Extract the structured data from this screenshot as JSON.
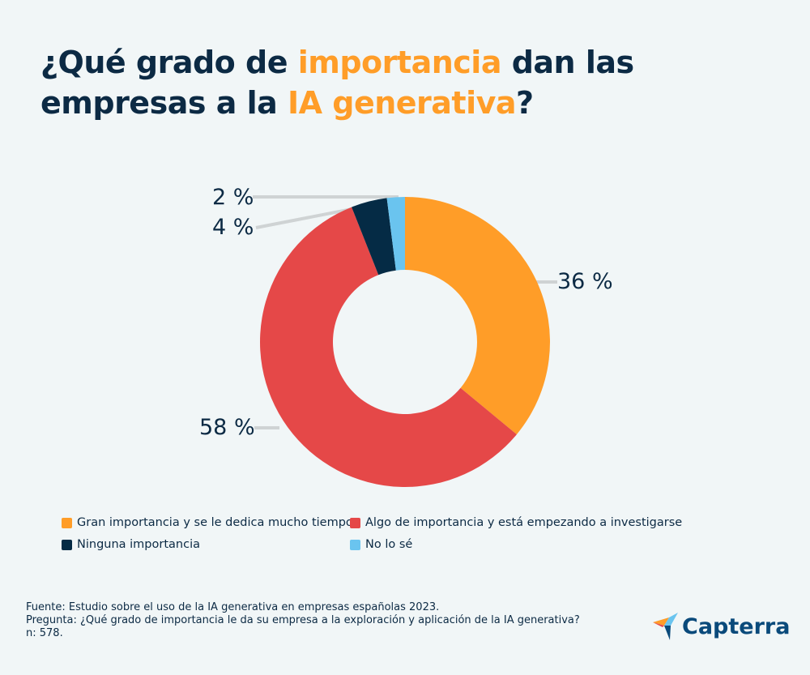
{
  "title": {
    "part1": "¿Qué grado de ",
    "highlight1": "importancia",
    "part2": " dan las",
    "part3": "empresas a la ",
    "highlight2": "IA generativa",
    "part4": "?"
  },
  "chart_data": {
    "type": "pie",
    "donut": true,
    "categories": [
      "Gran importancia y se le dedica mucho tiempo",
      "Algo de importancia y está empezando a investigarse",
      "Ninguna importancia",
      "No lo sé"
    ],
    "values": [
      36,
      58,
      4,
      2
    ],
    "labels": [
      "36 %",
      "58 %",
      "4 %",
      "2 %"
    ],
    "colors": [
      "#ff9d28",
      "#e54848",
      "#052b45",
      "#6ac4ef"
    ],
    "legend_position": "bottom"
  },
  "footer": {
    "source": "Fuente: Estudio sobre el uso de la IA generativa en empresas españolas 2023.",
    "question": "Pregunta: ¿Qué grado de importancia le da su empresa a la exploración y aplicación de la IA generativa?",
    "n": "n: 578."
  },
  "logo": {
    "text": "Capterra"
  }
}
